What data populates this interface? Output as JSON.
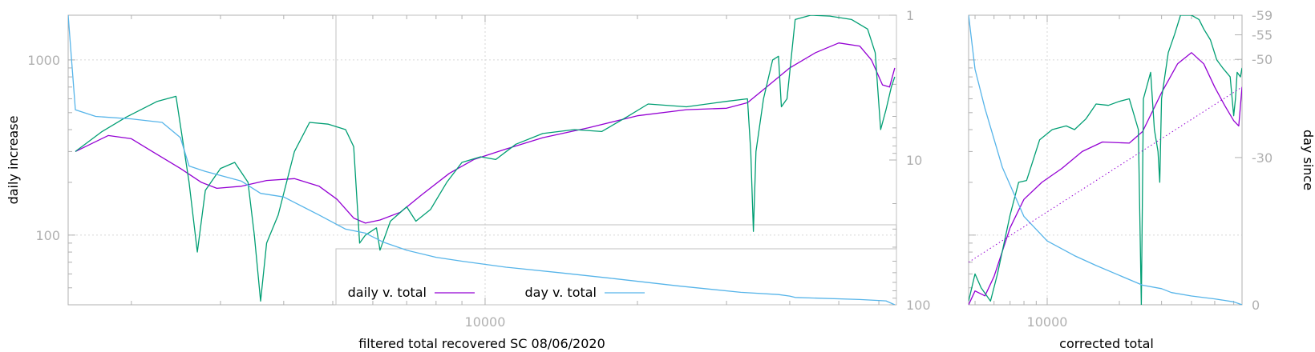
{
  "colors": {
    "daily": "#9400d3",
    "filtered": "#009e73",
    "day": "#56b4e9",
    "fit": "#9400d3",
    "axis": "#b0b0b0",
    "grid": "#d8d8d8"
  },
  "chart_data": [
    {
      "type": "line",
      "xlabel": "filtered total recovered SC 08/06/2020",
      "ylabel": "daily increase",
      "y2label": "",
      "x_scale": "log",
      "y_scale": "log",
      "y2_scale": "log-reversed",
      "xlim": [
        1500,
        65000
      ],
      "ylim": [
        40,
        1800
      ],
      "y2lim": [
        1,
        100
      ],
      "x_ticks": [
        {
          "value": 10000,
          "label": "10000"
        }
      ],
      "y_ticks": [
        {
          "value": 100,
          "label": "100"
        },
        {
          "value": 1000,
          "label": "1000"
        }
      ],
      "y2_ticks": [
        {
          "value": 1,
          "label": "1"
        },
        {
          "value": 10,
          "label": "10"
        },
        {
          "value": 100,
          "label": "100"
        }
      ],
      "grid": true,
      "legend": "bottom-center",
      "series": [
        {
          "name": "daily v. total",
          "axis": "y",
          "points": [
            [
              1550,
              300
            ],
            [
              1800,
              370
            ],
            [
              2000,
              355
            ],
            [
              2200,
              300
            ],
            [
              2500,
              240
            ],
            [
              2750,
              200
            ],
            [
              2950,
              185
            ],
            [
              3300,
              190
            ],
            [
              3700,
              205
            ],
            [
              4200,
              210
            ],
            [
              4700,
              190
            ],
            [
              5100,
              160
            ],
            [
              5500,
              125
            ],
            [
              5800,
              117
            ],
            [
              6200,
              122
            ],
            [
              6800,
              135
            ],
            [
              7500,
              170
            ],
            [
              8500,
              225
            ],
            [
              9500,
              270
            ],
            [
              11000,
              310
            ],
            [
              13000,
              360
            ],
            [
              16000,
              410
            ],
            [
              20000,
              480
            ],
            [
              25000,
              520
            ],
            [
              30000,
              530
            ],
            [
              33000,
              570
            ],
            [
              36000,
              700
            ],
            [
              40000,
              900
            ],
            [
              45000,
              1100
            ],
            [
              50000,
              1250
            ],
            [
              55000,
              1200
            ],
            [
              58000,
              1000
            ],
            [
              61000,
              720
            ],
            [
              63000,
              700
            ],
            [
              64500,
              900
            ]
          ]
        },
        {
          "name": "",
          "axis": "y",
          "points": [
            [
              1550,
              300
            ],
            [
              1750,
              390
            ],
            [
              1950,
              470
            ],
            [
              2250,
              580
            ],
            [
              2450,
              620
            ],
            [
              2600,
              200
            ],
            [
              2700,
              80
            ],
            [
              2800,
              180
            ],
            [
              3000,
              240
            ],
            [
              3200,
              260
            ],
            [
              3400,
              200
            ],
            [
              3500,
              100
            ],
            [
              3600,
              42
            ],
            [
              3700,
              90
            ],
            [
              3900,
              130
            ],
            [
              4200,
              300
            ],
            [
              4500,
              440
            ],
            [
              4900,
              430
            ],
            [
              5300,
              400
            ],
            [
              5500,
              320
            ],
            [
              5650,
              90
            ],
            [
              5800,
              100
            ],
            [
              6100,
              110
            ],
            [
              6200,
              82
            ],
            [
              6500,
              120
            ],
            [
              7000,
              145
            ],
            [
              7300,
              120
            ],
            [
              7800,
              140
            ],
            [
              8400,
              200
            ],
            [
              9000,
              260
            ],
            [
              9800,
              280
            ],
            [
              10500,
              270
            ],
            [
              11500,
              330
            ],
            [
              13000,
              380
            ],
            [
              15000,
              400
            ],
            [
              17000,
              390
            ],
            [
              19000,
              470
            ],
            [
              21000,
              560
            ],
            [
              25000,
              540
            ],
            [
              30000,
              580
            ],
            [
              33000,
              600
            ],
            [
              33500,
              300
            ],
            [
              33900,
              105
            ],
            [
              34300,
              300
            ],
            [
              35500,
              600
            ],
            [
              37000,
              1000
            ],
            [
              38000,
              1050
            ],
            [
              38500,
              540
            ],
            [
              39500,
              600
            ],
            [
              41000,
              1700
            ],
            [
              44000,
              1800
            ],
            [
              48000,
              1780
            ],
            [
              53000,
              1700
            ],
            [
              57000,
              1500
            ],
            [
              59000,
              1100
            ],
            [
              60500,
              400
            ],
            [
              62000,
              520
            ],
            [
              63500,
              700
            ],
            [
              64500,
              800
            ]
          ]
        },
        {
          "name": "day v. total",
          "axis": "y2",
          "points": [
            [
              1500,
              1
            ],
            [
              1550,
              4.5
            ],
            [
              1700,
              5
            ],
            [
              2000,
              5.2
            ],
            [
              2300,
              5.5
            ],
            [
              2500,
              7
            ],
            [
              2600,
              11
            ],
            [
              2800,
              12
            ],
            [
              3300,
              14
            ],
            [
              3600,
              17
            ],
            [
              4000,
              18
            ],
            [
              4700,
              24
            ],
            [
              5300,
              30
            ],
            [
              5800,
              32
            ],
            [
              6300,
              37
            ],
            [
              7000,
              42
            ],
            [
              8000,
              47
            ],
            [
              9000,
              50
            ],
            [
              11000,
              55
            ],
            [
              14000,
              60
            ],
            [
              18000,
              66
            ],
            [
              24000,
              74
            ],
            [
              32000,
              82
            ],
            [
              38000,
              85
            ],
            [
              40000,
              87
            ],
            [
              41000,
              89
            ],
            [
              55000,
              92
            ],
            [
              62000,
              94
            ],
            [
              64500,
              100
            ]
          ]
        }
      ]
    },
    {
      "type": "line",
      "xlabel": "corrected total",
      "ylabel": "",
      "y2label": "day since",
      "x_scale": "log",
      "y_scale": "log",
      "y2_scale": "linear-reversed",
      "xlim": [
        4700,
        65000
      ],
      "ylim": [
        40,
        1800
      ],
      "y2lim": [
        0,
        -59
      ],
      "x_ticks": [
        {
          "value": 10000,
          "label": "10000"
        }
      ],
      "y2_ticks": [
        {
          "value": -59,
          "label": "-59"
        },
        {
          "value": -55,
          "label": "-55"
        },
        {
          "value": -50,
          "label": "-50"
        },
        {
          "value": -30,
          "label": "-30"
        },
        {
          "value": 0,
          "label": "0"
        }
      ],
      "grid": true,
      "legend": "none",
      "series": [
        {
          "name": "",
          "axis": "y",
          "points": [
            [
              4700,
              40
            ],
            [
              5000,
              48
            ],
            [
              5500,
              45
            ],
            [
              6000,
              58
            ],
            [
              7000,
              110
            ],
            [
              8000,
              160
            ],
            [
              9500,
              200
            ],
            [
              11500,
              240
            ],
            [
              14000,
              300
            ],
            [
              17000,
              340
            ],
            [
              22000,
              335
            ],
            [
              25000,
              390
            ],
            [
              30000,
              650
            ],
            [
              35000,
              950
            ],
            [
              40000,
              1100
            ],
            [
              45000,
              950
            ],
            [
              50000,
              700
            ],
            [
              55000,
              550
            ],
            [
              60000,
              450
            ],
            [
              63000,
              420
            ],
            [
              65000,
              700
            ]
          ]
        },
        {
          "name": "",
          "axis": "y",
          "points": [
            [
              4700,
              42
            ],
            [
              5000,
              60
            ],
            [
              5300,
              50
            ],
            [
              5800,
              42
            ],
            [
              6200,
              60
            ],
            [
              7000,
              130
            ],
            [
              7600,
              200
            ],
            [
              8200,
              205
            ],
            [
              8600,
              250
            ],
            [
              9300,
              350
            ],
            [
              10500,
              400
            ],
            [
              12000,
              420
            ],
            [
              13000,
              400
            ],
            [
              14500,
              460
            ],
            [
              16000,
              560
            ],
            [
              18000,
              550
            ],
            [
              20000,
              580
            ],
            [
              22000,
              600
            ],
            [
              24000,
              400
            ],
            [
              24700,
              40
            ],
            [
              25200,
              600
            ],
            [
              27000,
              850
            ],
            [
              28000,
              400
            ],
            [
              29000,
              300
            ],
            [
              29500,
              200
            ],
            [
              30000,
              600
            ],
            [
              32000,
              1100
            ],
            [
              34000,
              1400
            ],
            [
              36000,
              1800
            ],
            [
              40000,
              1800
            ],
            [
              43000,
              1700
            ],
            [
              45000,
              1500
            ],
            [
              48000,
              1300
            ],
            [
              51000,
              1000
            ],
            [
              54000,
              900
            ],
            [
              58000,
              800
            ],
            [
              60000,
              480
            ],
            [
              61000,
              600
            ],
            [
              62000,
              850
            ],
            [
              64000,
              800
            ],
            [
              65000,
              900
            ]
          ]
        },
        {
          "name": "",
          "axis": "y2",
          "points": [
            [
              4700,
              -59
            ],
            [
              5000,
              -48
            ],
            [
              5500,
              -40
            ],
            [
              6500,
              -28
            ],
            [
              8000,
              -18
            ],
            [
              10000,
              -13
            ],
            [
              13000,
              -10
            ],
            [
              16000,
              -8
            ],
            [
              20000,
              -6
            ],
            [
              25000,
              -4
            ],
            [
              30000,
              -3.3
            ],
            [
              33000,
              -2.5
            ],
            [
              40000,
              -1.8
            ],
            [
              50000,
              -1.2
            ],
            [
              60000,
              -0.6
            ],
            [
              65000,
              0
            ]
          ]
        },
        {
          "name": "",
          "axis": "y",
          "dashed": true,
          "points": [
            [
              4700,
              70
            ],
            [
              65000,
              700
            ]
          ]
        }
      ]
    }
  ]
}
